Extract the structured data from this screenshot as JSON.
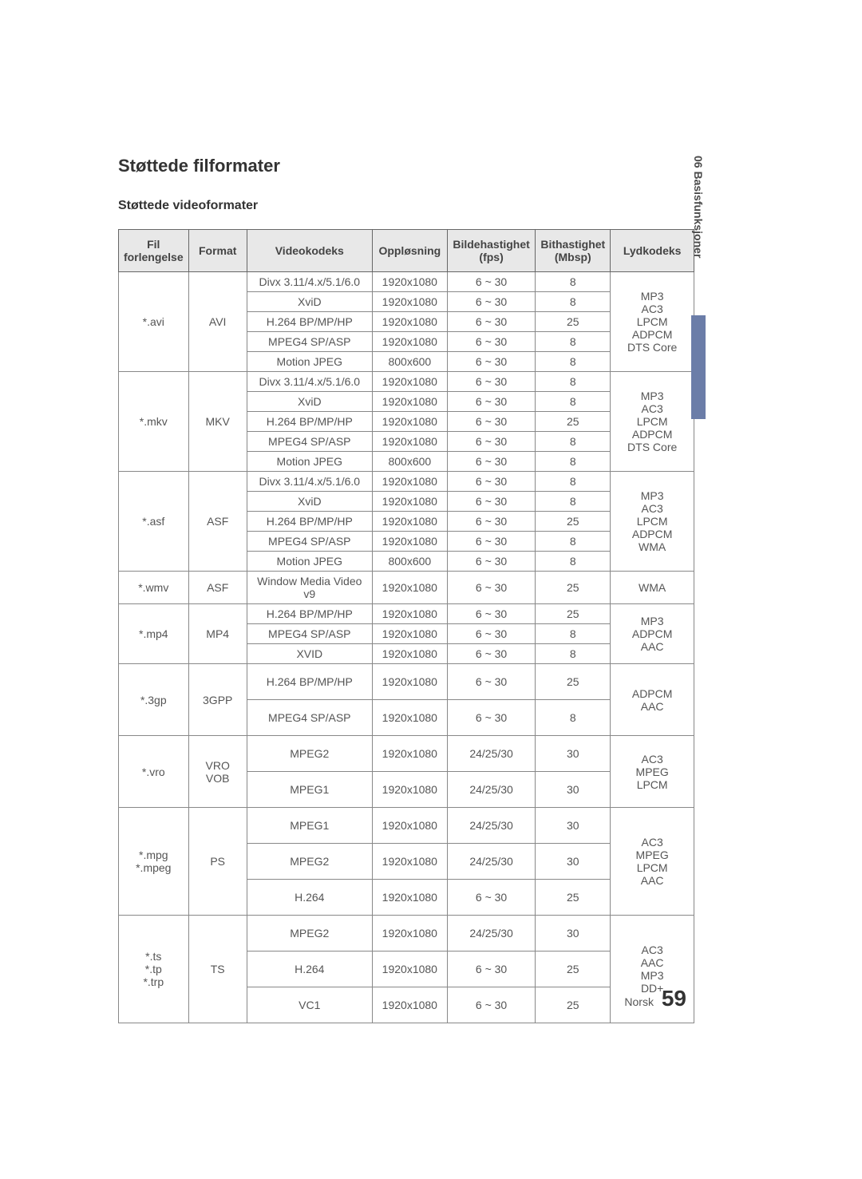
{
  "sideTab": "06  Basisfunksjoner",
  "sectionTitle": "Støttede filformater",
  "subTitle": "Støttede videoformater",
  "tableHeaders": {
    "ext": "Fil\nforlengelse",
    "format": "Format",
    "vcodec": "Videokodeks",
    "res": "Oppløsning",
    "fps": "Bildehastighet\n(fps)",
    "bitrate": "Bithastighet\n(Mbsp)",
    "acodec": "Lydkodeks"
  },
  "groups": [
    {
      "ext": "*.avi",
      "format": "AVI",
      "audio": "MP3\nAC3\nLPCM\nADPCM\nDTS Core",
      "rows": [
        {
          "v": "Divx 3.11/4.x/5.1/6.0",
          "r": "1920x1080",
          "f": "6 ~ 30",
          "b": "8"
        },
        {
          "v": "XviD",
          "r": "1920x1080",
          "f": "6 ~ 30",
          "b": "8"
        },
        {
          "v": "H.264 BP/MP/HP",
          "r": "1920x1080",
          "f": "6 ~ 30",
          "b": "25"
        },
        {
          "v": "MPEG4 SP/ASP",
          "r": "1920x1080",
          "f": "6 ~ 30",
          "b": "8"
        },
        {
          "v": "Motion JPEG",
          "r": "800x600",
          "f": "6 ~ 30",
          "b": "8"
        }
      ]
    },
    {
      "ext": "*.mkv",
      "format": "MKV",
      "audio": "MP3\nAC3\nLPCM\nADPCM\nDTS Core",
      "rows": [
        {
          "v": "Divx 3.11/4.x/5.1/6.0",
          "r": "1920x1080",
          "f": "6 ~ 30",
          "b": "8"
        },
        {
          "v": "XviD",
          "r": "1920x1080",
          "f": "6 ~ 30",
          "b": "8"
        },
        {
          "v": "H.264 BP/MP/HP",
          "r": "1920x1080",
          "f": "6 ~ 30",
          "b": "25"
        },
        {
          "v": "MPEG4 SP/ASP",
          "r": "1920x1080",
          "f": "6 ~ 30",
          "b": "8"
        },
        {
          "v": "Motion JPEG",
          "r": "800x600",
          "f": "6 ~ 30",
          "b": "8"
        }
      ]
    },
    {
      "ext": "*.asf",
      "format": "ASF",
      "audio": "MP3\nAC3\nLPCM\nADPCM\nWMA",
      "rows": [
        {
          "v": "Divx 3.11/4.x/5.1/6.0",
          "r": "1920x1080",
          "f": "6 ~ 30",
          "b": "8"
        },
        {
          "v": "XviD",
          "r": "1920x1080",
          "f": "6 ~ 30",
          "b": "8"
        },
        {
          "v": "H.264 BP/MP/HP",
          "r": "1920x1080",
          "f": "6 ~ 30",
          "b": "25"
        },
        {
          "v": "MPEG4 SP/ASP",
          "r": "1920x1080",
          "f": "6 ~ 30",
          "b": "8"
        },
        {
          "v": "Motion JPEG",
          "r": "800x600",
          "f": "6 ~ 30",
          "b": "8"
        }
      ]
    },
    {
      "ext": "*.wmv",
      "format": "ASF",
      "audio": "WMA",
      "rows": [
        {
          "v": "Window Media Video v9",
          "r": "1920x1080",
          "f": "6 ~ 30",
          "b": "25"
        }
      ]
    },
    {
      "ext": "*.mp4",
      "format": "MP4",
      "audio": "MP3\nADPCM\nAAC",
      "rows": [
        {
          "v": "H.264 BP/MP/HP",
          "r": "1920x1080",
          "f": "6 ~ 30",
          "b": "25"
        },
        {
          "v": "MPEG4 SP/ASP",
          "r": "1920x1080",
          "f": "6 ~ 30",
          "b": "8"
        },
        {
          "v": "XVID",
          "r": "1920x1080",
          "f": "6 ~ 30",
          "b": "8"
        }
      ]
    },
    {
      "ext": "*.3gp",
      "format": "3GPP",
      "audio": "ADPCM\nAAC",
      "tall": true,
      "rows": [
        {
          "v": "H.264 BP/MP/HP",
          "r": "1920x1080",
          "f": "6 ~ 30",
          "b": "25"
        },
        {
          "v": "MPEG4 SP/ASP",
          "r": "1920x1080",
          "f": "6 ~ 30",
          "b": "8"
        }
      ]
    },
    {
      "ext": "*.vro",
      "format": "VRO\nVOB",
      "audio": "AC3\nMPEG\nLPCM",
      "tall": true,
      "rows": [
        {
          "v": "MPEG2",
          "r": "1920x1080",
          "f": "24/25/30",
          "b": "30"
        },
        {
          "v": "MPEG1",
          "r": "1920x1080",
          "f": "24/25/30",
          "b": "30"
        }
      ]
    },
    {
      "ext": "*.mpg\n*.mpeg",
      "format": "PS",
      "audio": "AC3\nMPEG\nLPCM\nAAC",
      "tall": true,
      "rows": [
        {
          "v": "MPEG1",
          "r": "1920x1080",
          "f": "24/25/30",
          "b": "30"
        },
        {
          "v": "MPEG2",
          "r": "1920x1080",
          "f": "24/25/30",
          "b": "30"
        },
        {
          "v": "H.264",
          "r": "1920x1080",
          "f": "6 ~ 30",
          "b": "25"
        }
      ]
    },
    {
      "ext": "*.ts\n*.tp\n*.trp",
      "format": "TS",
      "audio": "AC3\nAAC\nMP3\nDD+",
      "tall": true,
      "rows": [
        {
          "v": "MPEG2",
          "r": "1920x1080",
          "f": "24/25/30",
          "b": "30"
        },
        {
          "v": "H.264",
          "r": "1920x1080",
          "f": "6 ~ 30",
          "b": "25"
        },
        {
          "v": "VC1",
          "r": "1920x1080",
          "f": "6 ~ 30",
          "b": "25"
        }
      ]
    }
  ],
  "footer": {
    "label": "Norsk",
    "page": "59"
  }
}
